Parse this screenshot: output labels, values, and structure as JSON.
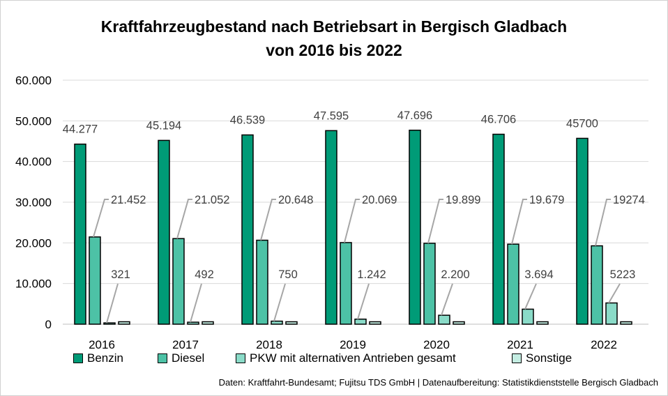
{
  "title_line1": "Kraftfahrzeugbestand nach Betriebsart in Bergisch Gladbach",
  "title_line2": "von 2016 bis 2022",
  "source": "Daten: Kraftfahrt-Bundesamt; Fujitsu TDS GmbH | Datenaufbereitung: Statistikdienststelle Bergisch Gladbach",
  "colors": {
    "benzin": "#009B77",
    "diesel": "#4DC2A6",
    "alternativ": "#8ADBC8",
    "sonstige": "#C4EDE2",
    "gridline": "#d9d9d9",
    "leader": "#a6a6a6"
  },
  "chart_data": {
    "type": "bar",
    "title": "Kraftfahrzeugbestand nach Betriebsart in Bergisch Gladbach von 2016 bis 2022",
    "xlabel": "",
    "ylabel": "",
    "ylim": [
      0,
      60000
    ],
    "yticks": [
      0,
      10000,
      20000,
      30000,
      40000,
      50000,
      60000
    ],
    "ytick_labels": [
      "0",
      "10.000",
      "20.000",
      "30.000",
      "40.000",
      "50.000",
      "60.000"
    ],
    "grid": true,
    "legend": "bottom",
    "categories": [
      "2016",
      "2017",
      "2018",
      "2019",
      "2020",
      "2021",
      "2022"
    ],
    "series": [
      {
        "name": "Benzin",
        "values": [
          44277,
          45194,
          46539,
          47595,
          47696,
          46706,
          45700
        ],
        "labels": [
          "44.277",
          "45.194",
          "46.539",
          "47.595",
          "47.696",
          "46.706",
          "45700"
        ]
      },
      {
        "name": "Diesel",
        "values": [
          21452,
          21052,
          20648,
          20069,
          19899,
          19679,
          19274
        ],
        "labels": [
          "21.452",
          "21.052",
          "20.648",
          "20.069",
          "19.899",
          "19.679",
          "19274"
        ]
      },
      {
        "name": "PKW mit alternativen Antrieben gesamt",
        "values": [
          321,
          492,
          750,
          1242,
          2200,
          3694,
          5223
        ],
        "labels": [
          "321",
          "492",
          "750",
          "1.242",
          "2.200",
          "3.694",
          "5223"
        ]
      },
      {
        "name": "Sonstige",
        "values": [
          600,
          600,
          600,
          600,
          600,
          600,
          600
        ],
        "labels": []
      }
    ]
  }
}
